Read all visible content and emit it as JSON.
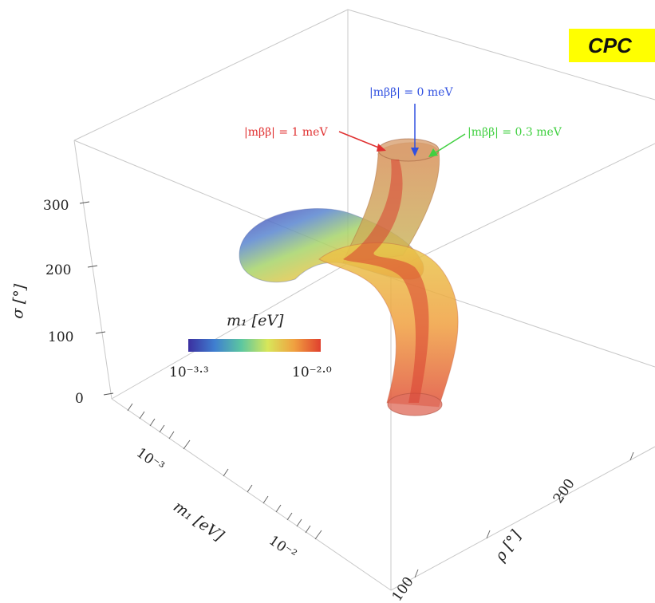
{
  "badge": {
    "text": "CPC"
  },
  "chart_data": {
    "type": "3d-surface",
    "title": "",
    "axes": {
      "x": {
        "label": "m₁ [eV]",
        "scale": "log",
        "ticks": [
          "10⁻³",
          "10⁻²"
        ]
      },
      "y": {
        "label": "ρ [°]",
        "ticks": [
          "100",
          "200"
        ]
      },
      "z": {
        "label": "σ [°]",
        "ticks": [
          "0",
          "100",
          "200",
          "300"
        ]
      }
    },
    "colorbar": {
      "label": "m₁ [eV]",
      "min_label": "10⁻³·³",
      "max_label": "10⁻²·⁰",
      "min_exp": -3.3,
      "max_exp": -2.0,
      "colors": [
        "#3b2fa0",
        "#3f7fd0",
        "#5cc7a0",
        "#d8e65a",
        "#f0a040",
        "#e0402e"
      ]
    },
    "series": [
      {
        "name": "|mββ| = 1 meV",
        "color": "#e03030"
      },
      {
        "name": "|mββ| = 0 meV",
        "color": "#3050e0"
      },
      {
        "name": "|mββ| = 0.3 meV",
        "color": "#40d040"
      }
    ],
    "annotations": [
      {
        "text": "|mββ| = 1 meV",
        "color": "#e03030"
      },
      {
        "text": "|mββ| = 0 meV",
        "color": "#3050e0"
      },
      {
        "text": "|mββ| = 0.3 meV",
        "color": "#40d040"
      }
    ],
    "box": true,
    "grid": false
  }
}
